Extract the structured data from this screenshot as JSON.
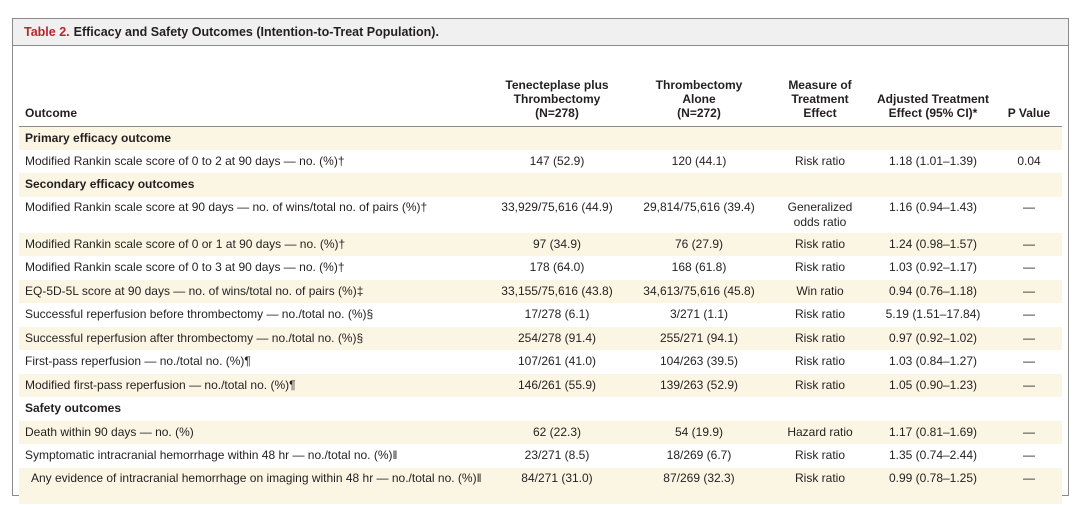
{
  "table": {
    "label": "Table 2.",
    "title": "Efficacy and Safety Outcomes (Intention-to-Treat Population).",
    "headers": {
      "outcome": "Outcome",
      "tenecteplase_l1": "Tenecteplase plus",
      "tenecteplase_l2": "Thrombectomy",
      "tenecteplase_l3": "(N=278)",
      "thrombectomy_l1": "Thrombectomy",
      "thrombectomy_l2": "Alone",
      "thrombectomy_l3": "(N=272)",
      "measure_l1": "Measure of",
      "measure_l2": "Treatment Effect",
      "adjusted_l1": "Adjusted Treatment",
      "adjusted_l2": "Effect (95% CI)*",
      "pvalue": "P Value"
    },
    "sections": {
      "primary": "Primary efficacy outcome",
      "secondary": "Secondary efficacy outcomes",
      "safety": "Safety outcomes"
    },
    "rows": [
      {
        "outcome": "Modified Rankin scale score of 0 to 2 at 90 days — no. (%)†",
        "ten": "147 (52.9)",
        "thr": "120 (44.1)",
        "measure": "Risk ratio",
        "effect": "1.18 (1.01–1.39)",
        "p": "0.04"
      },
      {
        "outcome": "Modified Rankin scale score at 90 days — no. of wins/total no. of pairs (%)†",
        "ten": "33,929/75,616 (44.9)",
        "thr": "29,814/75,616 (39.4)",
        "measure_l1": "Generalized",
        "measure_l2": "odds ratio",
        "effect": "1.16 (0.94–1.43)",
        "p": "—"
      },
      {
        "outcome": "Modified Rankin scale score of 0 or 1 at 90 days — no. (%)†",
        "ten": "97 (34.9)",
        "thr": "76 (27.9)",
        "measure": "Risk ratio",
        "effect": "1.24 (0.98–1.57)",
        "p": "—"
      },
      {
        "outcome": "Modified Rankin scale score of 0 to 3 at 90 days — no. (%)†",
        "ten": "178 (64.0)",
        "thr": "168 (61.8)",
        "measure": "Risk ratio",
        "effect": "1.03 (0.92–1.17)",
        "p": "—"
      },
      {
        "outcome": "EQ-5D-5L score at 90 days — no. of wins/total no. of pairs (%)‡",
        "ten": "33,155/75,616 (43.8)",
        "thr": "34,613/75,616 (45.8)",
        "measure": "Win ratio",
        "effect": "0.94 (0.76–1.18)",
        "p": "—"
      },
      {
        "outcome": "Successful reperfusion before thrombectomy — no./total no. (%)§",
        "ten": "17/278 (6.1)",
        "thr": "3/271 (1.1)",
        "measure": "Risk ratio",
        "effect": "5.19 (1.51–17.84)",
        "p": "—"
      },
      {
        "outcome": "Successful reperfusion after thrombectomy — no./total no. (%)§",
        "ten": "254/278 (91.4)",
        "thr": "255/271 (94.1)",
        "measure": "Risk ratio",
        "effect": "0.97 (0.92–1.02)",
        "p": "—"
      },
      {
        "outcome": "First-pass reperfusion — no./total no. (%)¶",
        "ten": "107/261 (41.0)",
        "thr": "104/263 (39.5)",
        "measure": "Risk ratio",
        "effect": "1.03 (0.84–1.27)",
        "p": "—"
      },
      {
        "outcome": "Modified first-pass reperfusion — no./total no. (%)¶",
        "ten": "146/261 (55.9)",
        "thr": "139/263 (52.9)",
        "measure": "Risk ratio",
        "effect": "1.05 (0.90–1.23)",
        "p": "—"
      },
      {
        "outcome": "Death within 90 days — no. (%)",
        "ten": "62 (22.3)",
        "thr": "54 (19.9)",
        "measure": "Hazard ratio",
        "effect": "1.17 (0.81–1.69)",
        "p": "—"
      },
      {
        "outcome": "Symptomatic intracranial hemorrhage within 48 hr — no./total no. (%)‖",
        "ten": "23/271 (8.5)",
        "thr": "18/269 (6.7)",
        "measure": "Risk ratio",
        "effect": "1.35 (0.74–2.44)",
        "p": "—"
      },
      {
        "outcome": "Any evidence of intracranial hemorrhage on imaging within 48 hr — no./total no. (%)‖",
        "ten": "84/271 (31.0)",
        "thr": "87/269 (32.3)",
        "measure": "Risk ratio",
        "effect": "0.99 (0.78–1.25)",
        "p": "—"
      }
    ]
  }
}
